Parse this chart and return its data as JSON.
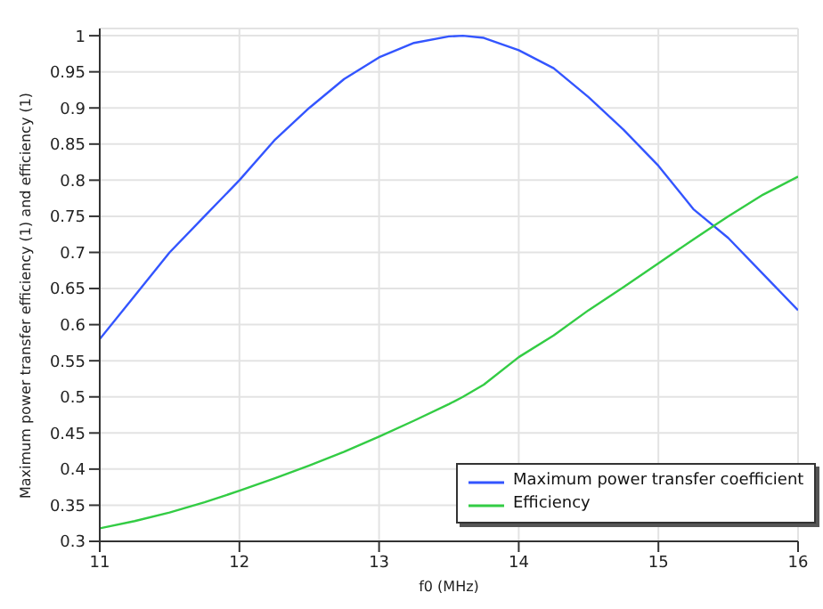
{
  "chart_data": {
    "type": "line",
    "xlabel": "f0 (MHz)",
    "ylabel": "Maximum power transfer efficiency (1) and efficiency (1)",
    "x": [
      11,
      11.25,
      11.5,
      11.75,
      12,
      12.25,
      12.5,
      12.75,
      13,
      13.25,
      13.5,
      13.6,
      13.75,
      14,
      14.25,
      14.5,
      14.75,
      15,
      15.25,
      15.5,
      15.75,
      16
    ],
    "series": [
      {
        "name": "Maximum power transfer coefficient",
        "color": "#3355ff",
        "values": [
          0.58,
          0.64,
          0.7,
          0.75,
          0.8,
          0.855,
          0.9,
          0.94,
          0.97,
          0.99,
          0.999,
          1,
          0.997,
          0.98,
          0.955,
          0.915,
          0.87,
          0.82,
          0.76,
          0.72,
          0.67,
          0.62
        ]
      },
      {
        "name": "Efficiency",
        "color": "#33cc44",
        "values": [
          0.318,
          0.328,
          0.34,
          0.354,
          0.37,
          0.387,
          0.405,
          0.424,
          0.445,
          0.467,
          0.49,
          0.5,
          0.517,
          0.555,
          0.585,
          0.62,
          0.652,
          0.685,
          0.718,
          0.75,
          0.78,
          0.805
        ]
      }
    ],
    "xlim": [
      11,
      16
    ],
    "xticks": [
      11,
      12,
      13,
      14,
      15,
      16
    ],
    "ylim": [
      0.3,
      1.01
    ],
    "yticks": [
      0.3,
      0.35,
      0.4,
      0.45,
      0.5,
      0.55,
      0.6,
      0.65,
      0.7,
      0.75,
      0.8,
      0.85,
      0.9,
      0.95,
      1
    ],
    "grid": true,
    "legend": "bottom right",
    "marker": "none",
    "line_style": "solid"
  }
}
